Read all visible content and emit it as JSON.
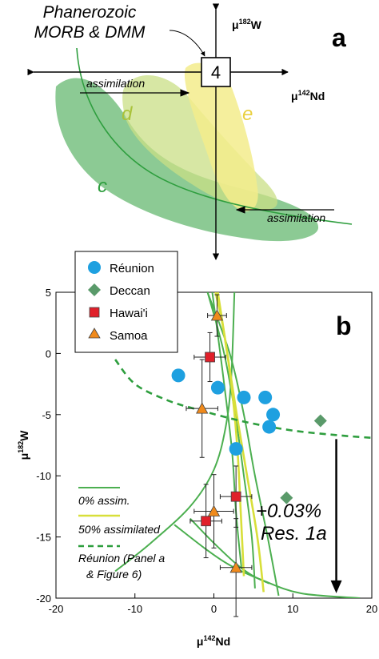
{
  "panel_a": {
    "panel_label": "a",
    "box_label": "4",
    "callout_line1": "Phanerozoic",
    "callout_line2": "MORB & DMM",
    "axis_y_label_prefix": "μ",
    "axis_y_label_sup": "182",
    "axis_y_label_suffix": "W",
    "axis_x_label_prefix": "μ",
    "axis_x_label_sup": "142",
    "axis_x_label_suffix": "Nd",
    "field_c": "c",
    "field_d": "d",
    "field_e": "e",
    "arrow_upper_label": "assimilation",
    "arrow_lower_label": "assimilation",
    "colors": {
      "c": "#5fb56b",
      "d": "#c9df86",
      "e": "#f3ec8c",
      "curve": "#2e9e3e"
    }
  },
  "chart_data": {
    "type": "scatter",
    "panel_label": "b",
    "xlabel_prefix": "μ",
    "xlabel_sup": "142",
    "xlabel_suffix": "Nd",
    "ylabel_prefix": "μ",
    "ylabel_sup": "182",
    "ylabel_suffix": "W",
    "xlim": [
      -20,
      20
    ],
    "ylim": [
      -20,
      5
    ],
    "x_ticks": [
      -20,
      -10,
      0,
      10,
      20
    ],
    "y_ticks": [
      5,
      0,
      -5,
      -10,
      -15,
      -20
    ],
    "legend": [
      "Réunion",
      "Deccan",
      "Hawai'i",
      "Samoa"
    ],
    "legend_placement": "top-left",
    "line_legend": {
      "l1": "0% assim.",
      "l2": "50% assimilated",
      "l3a": "Réunion (Panel a",
      "l3b": "& Figure 6)"
    },
    "annotation_line1": "+0.03%",
    "annotation_line2": "Res. 1a",
    "colors": {
      "reunion": "#1ea0e0",
      "deccan": "#5a9a6a",
      "hawaii": "#e0202a",
      "samoa": "#f08a1c",
      "curve_green": "#4caf50",
      "curve_yellow": "#d8df3a",
      "curve_dashed": "#2e9e3e"
    },
    "series": [
      {
        "name": "Réunion",
        "points": [
          {
            "x": -4.5,
            "y": -1.8
          },
          {
            "x": 0.5,
            "y": -2.8
          },
          {
            "x": 3.8,
            "y": -3.6
          },
          {
            "x": 6.5,
            "y": -3.6
          },
          {
            "x": 7.5,
            "y": -5.0
          },
          {
            "x": 7.0,
            "y": -6.0
          },
          {
            "x": 2.8,
            "y": -7.8
          }
        ]
      },
      {
        "name": "Deccan",
        "points": [
          {
            "x": 13.5,
            "y": -5.5
          },
          {
            "x": 9.2,
            "y": -11.8
          }
        ]
      },
      {
        "name": "Hawai'i",
        "points": [
          {
            "x": -0.5,
            "y": -0.3,
            "xerr": 2.0,
            "yerr": 2.0
          },
          {
            "x": 2.8,
            "y": -11.7,
            "xerr": 2.0,
            "yerr": 2.5
          },
          {
            "x": -1.0,
            "y": -13.7,
            "xerr": 2.0,
            "yerr": 3.0
          }
        ]
      },
      {
        "name": "Samoa",
        "points": [
          {
            "x": 0.4,
            "y": 3.1,
            "xerr": 1.2,
            "yerr": 1.7
          },
          {
            "x": -1.5,
            "y": -4.5,
            "xerr": 2.0,
            "yerr": 4.0
          },
          {
            "x": 0.0,
            "y": -12.9,
            "xerr": 2.5,
            "yerr": 3.0
          },
          {
            "x": 2.8,
            "y": -17.5,
            "xerr": 2.0,
            "yerr": 4.0
          }
        ]
      }
    ],
    "curves": [
      {
        "kind": "green",
        "points": [
          [
            -12.5,
            -17.8
          ],
          [
            -8,
            -15.5
          ],
          [
            -3,
            -12.5
          ],
          [
            0,
            -9.5
          ],
          [
            1.5,
            -6
          ],
          [
            2.2,
            -2
          ],
          [
            2.6,
            5
          ]
        ]
      },
      {
        "kind": "green",
        "points": [
          [
            -3,
            -13.5
          ],
          [
            0,
            -15.5
          ],
          [
            3,
            -17.3
          ],
          [
            5,
            -18.2
          ],
          [
            7,
            -18.8
          ]
        ]
      },
      {
        "kind": "green",
        "points": [
          [
            -5,
            -14
          ],
          [
            -1,
            -16
          ],
          [
            2,
            -17.3
          ],
          [
            6,
            -18.5
          ],
          [
            11,
            -19.6
          ],
          [
            18.5,
            -20
          ]
        ]
      },
      {
        "kind": "green",
        "points": [
          [
            3.5,
            -17.6
          ],
          [
            2.8,
            -13
          ],
          [
            2.3,
            -8
          ],
          [
            1.2,
            -2
          ],
          [
            0.2,
            3
          ],
          [
            -0.2,
            5
          ]
        ]
      },
      {
        "kind": "green",
        "points": [
          [
            5.2,
            -19.2
          ],
          [
            4.8,
            -15
          ],
          [
            3.8,
            -10
          ],
          [
            2.7,
            -5
          ],
          [
            1.3,
            0
          ],
          [
            -0.8,
            5
          ]
        ]
      },
      {
        "kind": "green",
        "points": [
          [
            8.2,
            -19.8
          ],
          [
            6.8,
            -15
          ],
          [
            5.2,
            -10
          ],
          [
            3.8,
            -5
          ],
          [
            2.0,
            0
          ],
          [
            -0.8,
            5
          ]
        ]
      },
      {
        "kind": "yellow",
        "points": [
          [
            3.8,
            -18.2
          ],
          [
            3.4,
            -13
          ],
          [
            3.0,
            -8
          ],
          [
            2.3,
            -3
          ],
          [
            1.2,
            2
          ],
          [
            0.2,
            5
          ]
        ]
      },
      {
        "kind": "yellow",
        "points": [
          [
            6.3,
            -19.5
          ],
          [
            5.5,
            -15
          ],
          [
            4.2,
            -10
          ],
          [
            2.9,
            -5
          ],
          [
            1.7,
            0
          ],
          [
            0.5,
            5
          ]
        ]
      },
      {
        "kind": "dashed",
        "points": [
          [
            -12.5,
            -0.5
          ],
          [
            -10,
            -2.5
          ],
          [
            -6,
            -3.8
          ],
          [
            -2,
            -4.6
          ],
          [
            4,
            -5.6
          ],
          [
            10,
            -6.3
          ],
          [
            16,
            -6.7
          ],
          [
            20,
            -6.9
          ]
        ]
      }
    ],
    "arrow": {
      "x": 15.5,
      "y_from": -7.0,
      "y_to": -19.6
    }
  }
}
